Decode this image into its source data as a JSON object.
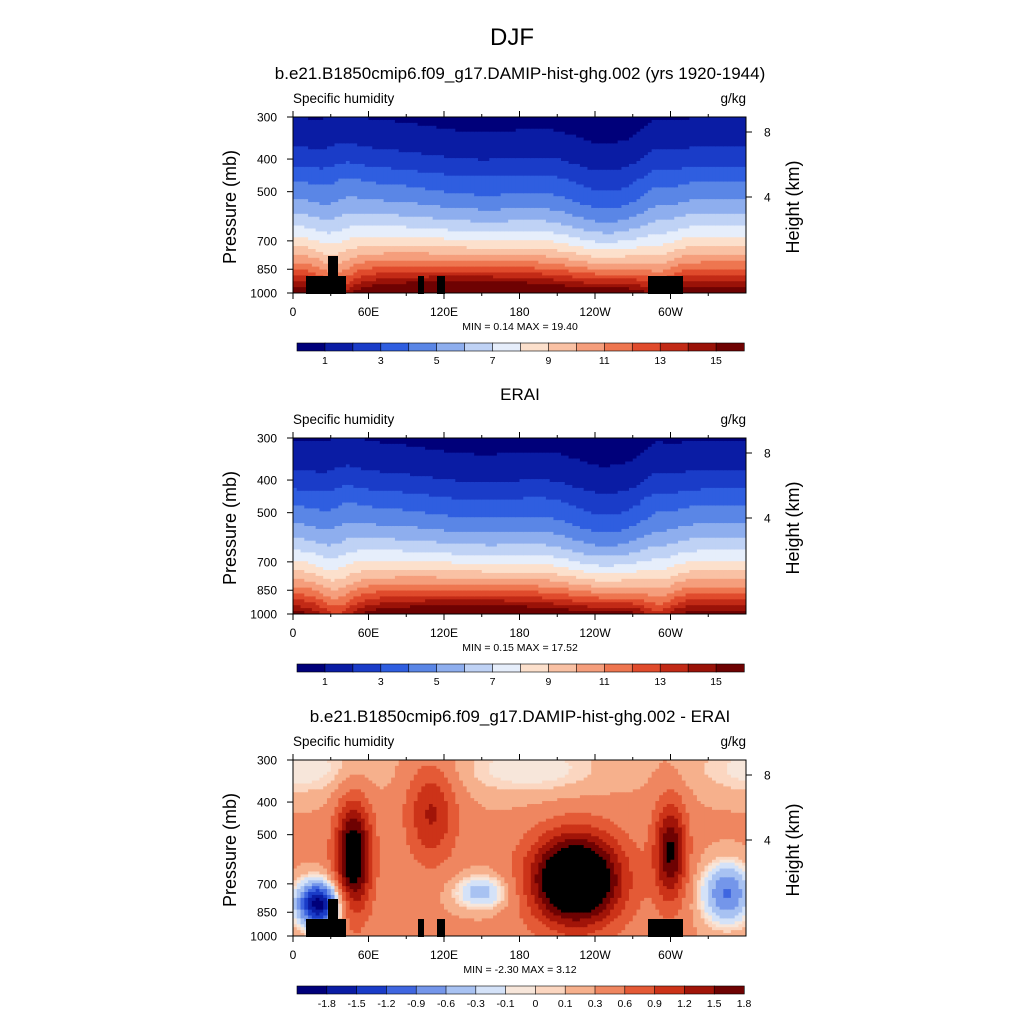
{
  "figure": {
    "title": "DJF"
  },
  "palettes": {
    "sequential": [
      "#00007a",
      "#0a1ca4",
      "#1a3cc8",
      "#2f5ee0",
      "#5a86e6",
      "#8eaeee",
      "#bfd2f5",
      "#e6eefb",
      "#fce0cc",
      "#f9c1a4",
      "#f59e7c",
      "#ee7650",
      "#e04b2c",
      "#c22a16",
      "#9a1208",
      "#6e0202"
    ],
    "diverging": [
      "#00007a",
      "#0a1ca4",
      "#1a3cc8",
      "#3f66e0",
      "#7496ea",
      "#a8c2f2",
      "#d4e2f8",
      "#f7e6da",
      "#fbd6c0",
      "#f6b08c",
      "#ef8660",
      "#e45a36",
      "#cc3318",
      "#a11408",
      "#6e0202"
    ]
  },
  "panels": [
    {
      "title": "b.e21.B1850cmip6.f09_g17.DAMIP-hist-ghg.002 (yrs 1920-1944)",
      "left_label": "Specific humidity",
      "right_label": "g/kg",
      "stats": "MIN =   0.14  MAX =  19.40",
      "colorbar_labels": [
        "1",
        "3",
        "5",
        "7",
        "9",
        "11",
        "13",
        "15"
      ],
      "palette": "sequential"
    },
    {
      "title": "ERAI",
      "left_label": "Specific humidity",
      "right_label": "g/kg",
      "stats": "MIN =   0.15  MAX =  17.52",
      "colorbar_labels": [
        "1",
        "3",
        "5",
        "7",
        "9",
        "11",
        "13",
        "15"
      ],
      "palette": "sequential"
    },
    {
      "title": "b.e21.B1850cmip6.f09_g17.DAMIP-hist-ghg.002 - ERAI",
      "left_label": "Specific humidity",
      "right_label": "g/kg",
      "stats": "MIN =  -2.30  MAX =   3.12",
      "colorbar_labels": [
        "-1.8",
        "-1.5",
        "-1.2",
        "-0.9",
        "-0.6",
        "-0.3",
        "-0.1",
        "0",
        "0.1",
        "0.3",
        "0.6",
        "0.9",
        "1.2",
        "1.5",
        "1.8"
      ],
      "palette": "diverging"
    }
  ],
  "chart_data": [
    {
      "type": "heatmap",
      "title": "b.e21.B1850cmip6.f09_g17.DAMIP-hist-ghg.002 (yrs 1920-1944)",
      "variable": "Specific humidity",
      "units": "g/kg",
      "ylabel": "Pressure (mb)",
      "ylabel_right": "Height (km)",
      "x_ticks": [
        "0",
        "60E",
        "120E",
        "180",
        "120W",
        "60W"
      ],
      "y_ticks": [
        "300",
        "400",
        "500",
        "700",
        "850",
        "1000"
      ],
      "y_ticks_right": [
        "8",
        "4"
      ],
      "xlim": [
        0,
        360
      ],
      "ylim": [
        1000,
        300
      ],
      "min": 0.14,
      "max": 19.4,
      "levels": [
        1,
        2,
        3,
        4,
        5,
        6,
        7,
        8,
        9,
        10,
        11,
        12,
        13,
        14,
        15
      ]
    },
    {
      "type": "heatmap",
      "title": "ERAI",
      "variable": "Specific humidity",
      "units": "g/kg",
      "ylabel": "Pressure (mb)",
      "ylabel_right": "Height (km)",
      "x_ticks": [
        "0",
        "60E",
        "120E",
        "180",
        "120W",
        "60W"
      ],
      "y_ticks": [
        "300",
        "400",
        "500",
        "700",
        "850",
        "1000"
      ],
      "y_ticks_right": [
        "8",
        "4"
      ],
      "xlim": [
        0,
        360
      ],
      "ylim": [
        1000,
        300
      ],
      "min": 0.15,
      "max": 17.52,
      "levels": [
        1,
        2,
        3,
        4,
        5,
        6,
        7,
        8,
        9,
        10,
        11,
        12,
        13,
        14,
        15
      ]
    },
    {
      "type": "heatmap",
      "title": "b.e21.B1850cmip6.f09_g17.DAMIP-hist-ghg.002 - ERAI",
      "variable": "Specific humidity",
      "units": "g/kg",
      "ylabel": "Pressure (mb)",
      "ylabel_right": "Height (km)",
      "x_ticks": [
        "0",
        "60E",
        "120E",
        "180",
        "120W",
        "60W"
      ],
      "y_ticks": [
        "300",
        "400",
        "500",
        "700",
        "850",
        "1000"
      ],
      "y_ticks_right": [
        "8",
        "4"
      ],
      "xlim": [
        0,
        360
      ],
      "ylim": [
        1000,
        300
      ],
      "min": -2.3,
      "max": 3.12,
      "levels": [
        -1.8,
        -1.5,
        -1.2,
        -0.9,
        -0.6,
        -0.3,
        -0.1,
        0,
        0.1,
        0.3,
        0.6,
        0.9,
        1.2,
        1.5,
        1.8
      ]
    }
  ]
}
